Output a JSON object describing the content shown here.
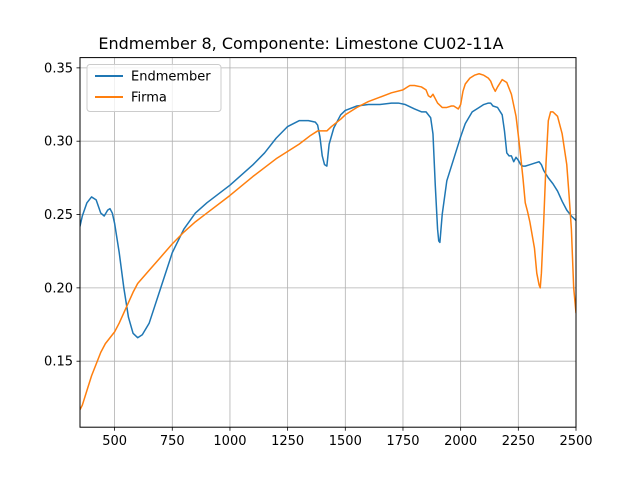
{
  "chart_data": {
    "type": "line",
    "title": "Endmember 8, Componente: Limestone CU02-11A",
    "xlabel": "",
    "ylabel": "",
    "xlim": [
      350,
      2500
    ],
    "ylim": [
      0.105,
      0.357
    ],
    "xticks": [
      500,
      750,
      1000,
      1250,
      1500,
      1750,
      2000,
      2250,
      2500
    ],
    "xtick_labels": [
      "500",
      "750",
      "1000",
      "1250",
      "1500",
      "1750",
      "2000",
      "2250",
      "2500"
    ],
    "yticks": [
      0.15,
      0.2,
      0.25,
      0.3,
      0.35
    ],
    "ytick_labels": [
      "0.15",
      "0.20",
      "0.25",
      "0.30",
      "0.35"
    ],
    "grid": true,
    "legend_position": "upper-left",
    "series": [
      {
        "name": "Endmember",
        "color": "#1f77b4",
        "x": [
          350,
          360,
          380,
          400,
          420,
          440,
          455,
          470,
          480,
          490,
          500,
          520,
          540,
          560,
          580,
          600,
          620,
          650,
          700,
          750,
          800,
          850,
          900,
          1000,
          1100,
          1150,
          1200,
          1250,
          1300,
          1340,
          1370,
          1380,
          1390,
          1400,
          1410,
          1420,
          1430,
          1450,
          1480,
          1500,
          1550,
          1600,
          1650,
          1700,
          1730,
          1760,
          1800,
          1830,
          1850,
          1870,
          1880,
          1890,
          1900,
          1905,
          1910,
          1920,
          1940,
          1970,
          2000,
          2020,
          2050,
          2080,
          2100,
          2120,
          2130,
          2140,
          2160,
          2180,
          2190,
          2200,
          2210,
          2220,
          2230,
          2240,
          2250,
          2260,
          2270,
          2280,
          2300,
          2320,
          2340,
          2350,
          2360,
          2380,
          2400,
          2420,
          2440,
          2460,
          2480,
          2500
        ],
        "y": [
          0.242,
          0.249,
          0.258,
          0.262,
          0.26,
          0.251,
          0.249,
          0.253,
          0.254,
          0.251,
          0.244,
          0.224,
          0.2,
          0.18,
          0.169,
          0.166,
          0.168,
          0.176,
          0.2,
          0.224,
          0.24,
          0.251,
          0.258,
          0.27,
          0.284,
          0.292,
          0.302,
          0.31,
          0.314,
          0.314,
          0.313,
          0.311,
          0.303,
          0.29,
          0.284,
          0.283,
          0.298,
          0.309,
          0.318,
          0.321,
          0.324,
          0.325,
          0.325,
          0.326,
          0.326,
          0.325,
          0.322,
          0.32,
          0.32,
          0.316,
          0.305,
          0.27,
          0.24,
          0.232,
          0.231,
          0.25,
          0.273,
          0.288,
          0.303,
          0.312,
          0.32,
          0.323,
          0.325,
          0.326,
          0.326,
          0.324,
          0.323,
          0.318,
          0.307,
          0.292,
          0.29,
          0.29,
          0.286,
          0.289,
          0.287,
          0.284,
          0.283,
          0.283,
          0.284,
          0.285,
          0.286,
          0.284,
          0.28,
          0.275,
          0.271,
          0.266,
          0.259,
          0.253,
          0.249,
          0.246
        ]
      },
      {
        "name": "Firma",
        "color": "#ff7f0e",
        "x": [
          350,
          360,
          380,
          400,
          420,
          440,
          460,
          480,
          500,
          520,
          540,
          560,
          580,
          600,
          650,
          700,
          750,
          800,
          850,
          900,
          1000,
          1100,
          1200,
          1300,
          1350,
          1380,
          1400,
          1420,
          1440,
          1480,
          1500,
          1550,
          1600,
          1650,
          1700,
          1750,
          1770,
          1780,
          1800,
          1830,
          1850,
          1860,
          1870,
          1880,
          1900,
          1920,
          1940,
          1960,
          1970,
          1980,
          1990,
          2000,
          2010,
          2020,
          2040,
          2060,
          2080,
          2100,
          2120,
          2130,
          2140,
          2150,
          2160,
          2180,
          2200,
          2220,
          2240,
          2250,
          2260,
          2270,
          2280,
          2290,
          2300,
          2320,
          2330,
          2340,
          2345,
          2350,
          2360,
          2370,
          2380,
          2390,
          2400,
          2420,
          2440,
          2460,
          2470,
          2480,
          2490,
          2500
        ],
        "y": [
          0.117,
          0.12,
          0.13,
          0.14,
          0.148,
          0.156,
          0.162,
          0.166,
          0.17,
          0.176,
          0.183,
          0.19,
          0.197,
          0.203,
          0.212,
          0.221,
          0.23,
          0.238,
          0.245,
          0.251,
          0.263,
          0.276,
          0.288,
          0.298,
          0.304,
          0.307,
          0.307,
          0.307,
          0.31,
          0.315,
          0.318,
          0.323,
          0.327,
          0.33,
          0.333,
          0.335,
          0.337,
          0.338,
          0.338,
          0.337,
          0.335,
          0.331,
          0.33,
          0.332,
          0.326,
          0.323,
          0.323,
          0.324,
          0.324,
          0.323,
          0.322,
          0.325,
          0.334,
          0.339,
          0.343,
          0.345,
          0.346,
          0.345,
          0.343,
          0.341,
          0.337,
          0.334,
          0.337,
          0.342,
          0.34,
          0.332,
          0.317,
          0.304,
          0.29,
          0.275,
          0.258,
          0.252,
          0.245,
          0.227,
          0.21,
          0.202,
          0.2,
          0.21,
          0.245,
          0.285,
          0.314,
          0.32,
          0.32,
          0.317,
          0.305,
          0.284,
          0.263,
          0.24,
          0.2,
          0.183
        ]
      }
    ]
  }
}
